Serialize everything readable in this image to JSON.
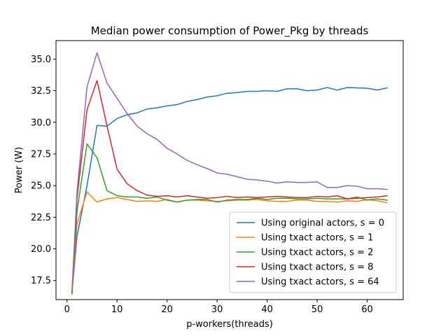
{
  "chart_data": {
    "type": "line",
    "title": "Median power consumption of Power_Pkg by threads",
    "xlabel": "p-workers(threads)",
    "ylabel": "Power (W)",
    "xlim": [
      -2.2,
      67.2
    ],
    "ylim": [
      15.99,
      36.46
    ],
    "xticks": [
      0,
      10,
      20,
      30,
      40,
      50,
      60
    ],
    "yticks": [
      17.5,
      20.0,
      22.5,
      25.0,
      27.5,
      30.0,
      32.5,
      35.0
    ],
    "ytick_labels": [
      "17.5",
      "20.0",
      "22.5",
      "25.0",
      "27.5",
      "30.0",
      "32.5",
      "35.0"
    ],
    "grid": false,
    "legend_position": "lower-right",
    "x": [
      1,
      2,
      4,
      6,
      8,
      10,
      12,
      14,
      16,
      18,
      20,
      22,
      24,
      26,
      28,
      30,
      32,
      34,
      36,
      38,
      40,
      42,
      44,
      46,
      48,
      50,
      52,
      54,
      56,
      58,
      60,
      62,
      64
    ],
    "series": [
      {
        "name": "Using original actors, s = 0",
        "color": "#1f77b4",
        "values": [
          16.6,
          21.0,
          25.0,
          29.75,
          29.7,
          30.3,
          30.6,
          30.75,
          31.05,
          31.15,
          31.3,
          31.4,
          31.65,
          31.8,
          32.0,
          32.1,
          32.3,
          32.35,
          32.45,
          32.45,
          32.5,
          32.45,
          32.65,
          32.65,
          32.5,
          32.55,
          32.75,
          32.55,
          32.75,
          32.72,
          32.7,
          32.55,
          32.72
        ]
      },
      {
        "name": "Using txact actors, s = 1",
        "color": "#ff7f0e",
        "values": [
          16.4,
          22.0,
          24.5,
          23.7,
          23.95,
          24.05,
          23.9,
          23.75,
          23.8,
          23.75,
          23.9,
          23.7,
          23.85,
          23.85,
          23.8,
          23.75,
          23.8,
          23.85,
          23.85,
          23.9,
          23.8,
          23.75,
          23.75,
          23.85,
          23.85,
          23.75,
          23.75,
          23.7,
          23.8,
          23.75,
          23.9,
          23.8,
          23.65
        ]
      },
      {
        "name": "Using txact actors, s = 2",
        "color": "#2ca02c",
        "values": [
          16.5,
          23.0,
          28.3,
          27.2,
          24.6,
          24.2,
          24.1,
          24.1,
          24.0,
          24.1,
          23.85,
          23.7,
          23.85,
          23.9,
          23.9,
          23.7,
          23.85,
          23.9,
          23.9,
          24.0,
          23.9,
          24.0,
          24.0,
          23.95,
          23.95,
          24.0,
          23.95,
          23.95,
          23.95,
          24.1,
          23.85,
          23.95,
          23.85
        ]
      },
      {
        "name": "Using txact actors, s = 8",
        "color": "#d62728",
        "values": [
          16.6,
          24.0,
          31.0,
          33.3,
          29.7,
          26.3,
          25.15,
          24.6,
          24.25,
          24.15,
          24.2,
          24.1,
          24.2,
          24.1,
          24.0,
          24.05,
          24.15,
          24.05,
          24.1,
          24.05,
          24.1,
          24.15,
          24.1,
          24.05,
          24.05,
          24.15,
          24.1,
          24.2,
          23.95,
          24.0,
          24.05,
          24.1,
          24.2
        ]
      },
      {
        "name": "Using txact actors, s = 64",
        "color": "#9467bd",
        "values": [
          16.7,
          24.5,
          32.8,
          35.5,
          33.1,
          31.9,
          30.7,
          29.7,
          29.1,
          28.65,
          27.95,
          27.5,
          27.0,
          26.65,
          26.35,
          26.0,
          25.9,
          25.7,
          25.5,
          25.45,
          25.35,
          25.2,
          25.3,
          25.25,
          25.25,
          25.3,
          24.85,
          24.85,
          25.0,
          24.95,
          24.75,
          24.75,
          24.7
        ]
      }
    ]
  }
}
